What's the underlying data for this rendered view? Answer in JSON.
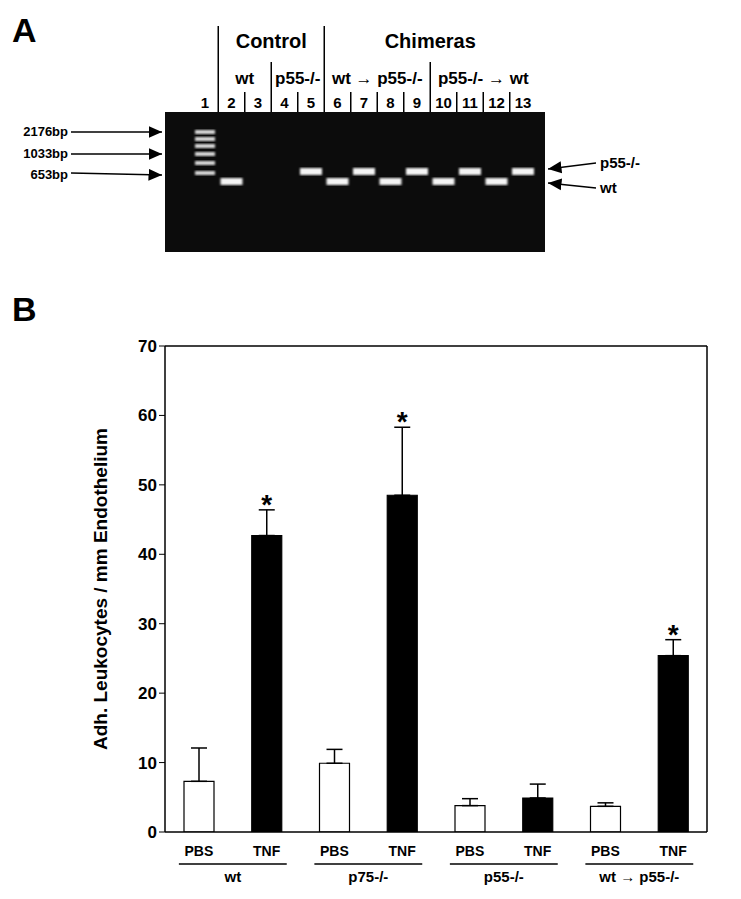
{
  "gel": {
    "panel_label": "A",
    "headings": [
      {
        "text": "Control",
        "lanes": [
          2,
          5
        ]
      },
      {
        "text": "Chimeras",
        "lanes": [
          6,
          13
        ]
      }
    ],
    "subheadings": [
      {
        "text": "wt",
        "lanes": [
          2,
          3
        ]
      },
      {
        "text": "p55-/-",
        "lanes": [
          4,
          5
        ]
      },
      {
        "text": "wt → p55-/-",
        "lanes": [
          6,
          9
        ]
      },
      {
        "text": "p55-/- → wt",
        "lanes": [
          10,
          13
        ]
      }
    ],
    "lanes": [
      1,
      2,
      3,
      4,
      5,
      6,
      7,
      8,
      9,
      10,
      11,
      12,
      13
    ],
    "ladder_lane": 1,
    "bands": [
      null,
      "wt",
      null,
      null,
      "p55-/-",
      "wt",
      "p55-/-",
      "wt",
      "p55-/-",
      "wt",
      "p55-/-",
      "wt",
      "p55-/-"
    ],
    "ladder_labels": [
      "2176bp",
      "1033bp",
      "653bp"
    ],
    "band_labels": [
      "p55-/-",
      "wt"
    ]
  },
  "chart_data": {
    "type": "bar",
    "panel_label": "B",
    "y_label": "Adh. Leukocytes / mm Endothelium",
    "categories": [
      "PBS",
      "TNF",
      "PBS",
      "TNF",
      "PBS",
      "TNF",
      "PBS",
      "TNF"
    ],
    "groups": [
      "wt",
      "p75-/-",
      "p55-/-",
      "wt → p55-/-"
    ],
    "values": [
      7.3,
      42.7,
      9.9,
      48.5,
      3.8,
      4.9,
      3.7,
      25.4
    ],
    "errors": [
      4.8,
      3.7,
      2.0,
      9.8,
      1.0,
      2.0,
      0.5,
      2.3
    ],
    "colors": [
      "#ffffff",
      "#000000",
      "#ffffff",
      "#000000",
      "#ffffff",
      "#000000",
      "#ffffff",
      "#000000"
    ],
    "significance": [
      null,
      "*",
      null,
      "*",
      null,
      null,
      null,
      "*"
    ],
    "ylim": [
      0,
      70
    ],
    "yticks": [
      0,
      10,
      20,
      30,
      40,
      50,
      60,
      70
    ],
    "grid": false
  }
}
